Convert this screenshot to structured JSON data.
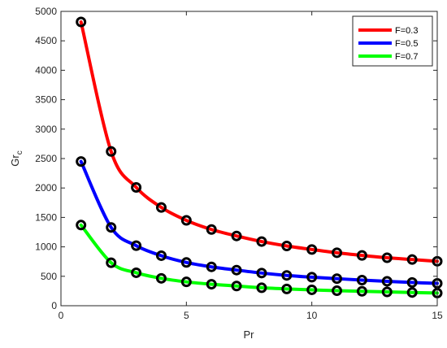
{
  "chart_data": {
    "type": "line",
    "xlabel": "Pr",
    "ylabel": {
      "main": "Gr",
      "sub": "c"
    },
    "xlim": [
      0,
      15
    ],
    "ylim": [
      0,
      5000
    ],
    "xticks": [
      0,
      5,
      10,
      15
    ],
    "yticks": [
      0,
      500,
      1000,
      1500,
      2000,
      2500,
      3000,
      3500,
      4000,
      4500,
      5000
    ],
    "grid": false,
    "legend_position": "top-right",
    "marker_color": "#000000",
    "x": [
      0.8,
      2,
      3,
      4,
      5,
      6,
      7,
      8,
      9,
      10,
      11,
      12,
      13,
      14,
      15
    ],
    "series": [
      {
        "name": "F=0.3",
        "color": "#ff0000",
        "values": [
          4820,
          2620,
          2010,
          1670,
          1450,
          1295,
          1185,
          1090,
          1015,
          955,
          900,
          855,
          815,
          785,
          755
        ]
      },
      {
        "name": "F=0.5",
        "color": "#0000ff",
        "values": [
          2450,
          1330,
          1020,
          850,
          735,
          660,
          605,
          555,
          515,
          485,
          460,
          435,
          415,
          395,
          380
        ]
      },
      {
        "name": "F=0.7",
        "color": "#00ff00",
        "values": [
          1370,
          730,
          560,
          465,
          405,
          365,
          335,
          305,
          285,
          270,
          255,
          245,
          235,
          225,
          215
        ]
      }
    ]
  }
}
